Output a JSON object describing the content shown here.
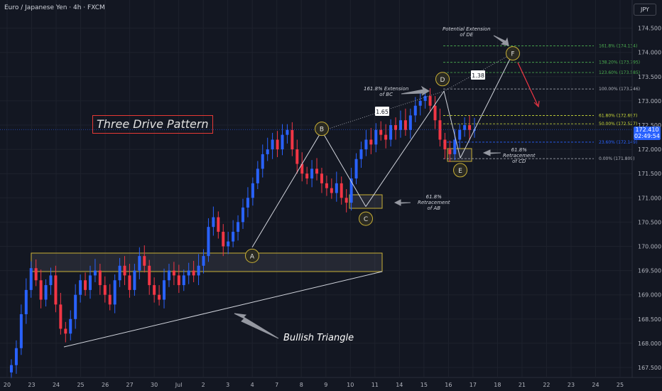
{
  "header": {
    "symbol_title": "Euro / Japanese Yen · 4h · FXCM",
    "currency": "JPY"
  },
  "pattern_title": "Three Drive Pattern",
  "triangle_label": "Bullish Triangle",
  "current_price": {
    "value": "172.410",
    "countdown": "02:49:54"
  },
  "annotations": {
    "extension_bc": [
      "161.8% Extension",
      "of BC"
    ],
    "extension_de": [
      "Potential Extension",
      "of DE"
    ],
    "retracement_ab": [
      "61.8%",
      "Retracement",
      "of AB"
    ],
    "retracement_cd": [
      "61.8%",
      "Retracement",
      "of CD"
    ],
    "ratio_bc": "1.65",
    "ratio_de": "1.38"
  },
  "points": [
    {
      "label": "A",
      "price": 169.98
    },
    {
      "label": "B",
      "price": 172.38
    },
    {
      "label": "C",
      "price": 170.82
    },
    {
      "label": "D",
      "price": 173.2
    },
    {
      "label": "E",
      "price": 171.82
    },
    {
      "label": "F",
      "price": 173.98
    }
  ],
  "fib_levels": [
    {
      "label": "161.8% (174.134)",
      "price": 174.134,
      "color": "#4caf50"
    },
    {
      "label": "138.20% (173.795)",
      "price": 173.795,
      "color": "#4caf50"
    },
    {
      "label": "123.60% (173.585)",
      "price": 173.585,
      "color": "#4caf50"
    },
    {
      "label": "100.00% (173.246)",
      "price": 173.246,
      "color": "#b2b5be"
    },
    {
      "label": "61.80% (172.697)",
      "price": 172.697,
      "color": "#cddc39"
    },
    {
      "label": "50.00% (172.527)",
      "price": 172.527,
      "color": "#cddc39"
    },
    {
      "label": "23.60% (172.149)",
      "price": 172.149,
      "color": "#2962ff"
    },
    {
      "label": "0.00% (171.809)",
      "price": 171.809,
      "color": "#b2b5be"
    }
  ],
  "chart_data": {
    "type": "candlestick",
    "title": "Euro / Japanese Yen · 4h · FXCM",
    "ylim": [
      167.3,
      174.75
    ],
    "y_ticks": [
      "167.500",
      "168.000",
      "168.500",
      "169.000",
      "169.500",
      "170.000",
      "170.500",
      "171.000",
      "171.500",
      "172.000",
      "172.500",
      "173.000",
      "173.500",
      "174.000",
      "174.500"
    ],
    "x_ticks": [
      "20",
      "23",
      "24",
      "25",
      "26",
      "27",
      "30",
      "Jul",
      "2",
      "3",
      "4",
      "7",
      "8",
      "9",
      "10",
      "11",
      "14",
      "15",
      "16",
      "17",
      "18",
      "21",
      "22",
      "23",
      "24",
      "25"
    ],
    "colors": {
      "up": "#2962ff",
      "down": "#f23645",
      "background": "#131722"
    },
    "approx_closes": [
      167.55,
      167.9,
      168.6,
      169.1,
      169.55,
      169.3,
      168.9,
      169.2,
      169.4,
      168.8,
      168.3,
      168.2,
      168.5,
      169.0,
      169.3,
      169.1,
      169.4,
      169.5,
      169.2,
      169.0,
      168.8,
      169.3,
      169.6,
      169.4,
      169.1,
      169.5,
      169.8,
      169.6,
      169.2,
      169.0,
      168.9,
      169.3,
      169.5,
      169.4,
      169.2,
      169.4,
      169.5,
      169.4,
      169.6,
      169.8,
      170.4,
      170.6,
      170.3,
      170.0,
      170.1,
      170.3,
      170.5,
      170.8,
      171.0,
      171.3,
      171.6,
      171.9,
      172.0,
      172.2,
      172.0,
      172.3,
      172.4,
      172.0,
      171.7,
      171.5,
      171.4,
      171.6,
      171.5,
      171.3,
      171.2,
      171.1,
      171.3,
      171.0,
      170.9,
      171.4,
      171.8,
      172.0,
      172.2,
      172.1,
      172.4,
      172.3,
      172.2,
      172.5,
      172.4,
      172.6,
      172.4,
      172.7,
      172.9,
      173.0,
      173.1,
      172.9,
      172.6,
      172.2,
      172.0,
      171.9,
      172.2,
      172.4,
      172.5,
      172.4,
      172.41
    ]
  }
}
